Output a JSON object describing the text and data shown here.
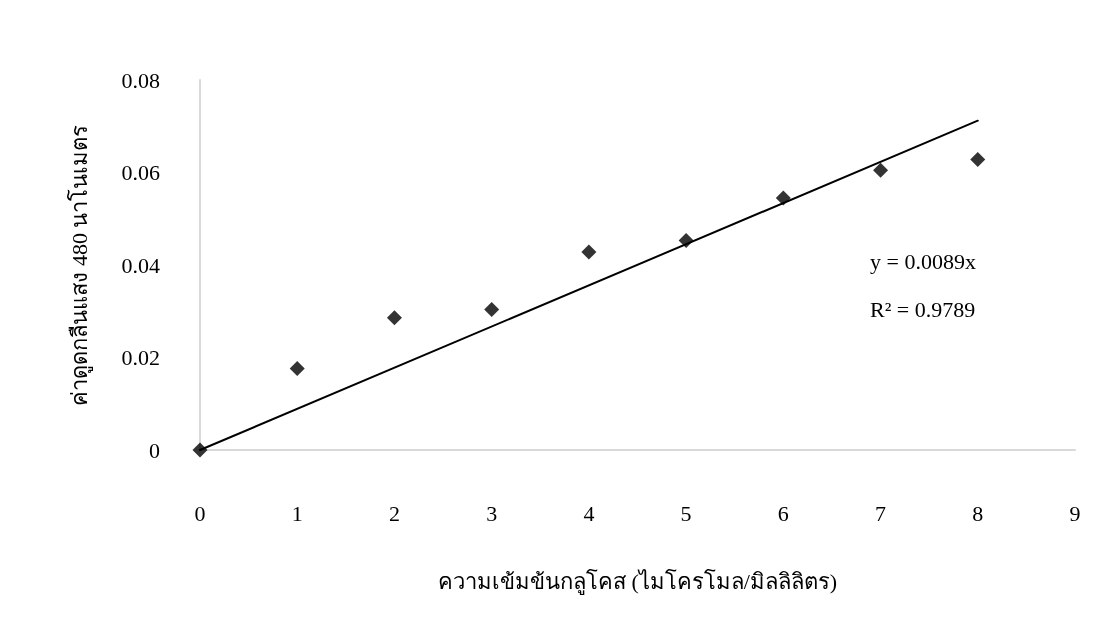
{
  "chart_data": {
    "type": "scatter",
    "xlabel": "ความเข้มข้นกลูโคส (ไมโครโมล/มิลลิลิตร)",
    "ylabel": "ค่าดูดกลืนแสง 480 นาโนเมตร",
    "x": [
      0,
      1,
      2,
      3,
      4,
      5,
      6,
      7,
      8
    ],
    "series": [
      {
        "color": "#000000",
        "marker": "diamond",
        "values": [
          0,
          0.0176,
          0.0286,
          0.0304,
          0.0428,
          0.0453,
          0.0545,
          0.0605,
          0.0628
        ]
      },
      {
        "type": "line",
        "color": "#000000",
        "line_style": "solid",
        "marker": "none",
        "x": [
          0,
          8
        ],
        "values": [
          0,
          0.0712
        ]
      }
    ],
    "xlim": [
      0,
      9
    ],
    "xticks": [
      0,
      1,
      2,
      3,
      4,
      5,
      6,
      7,
      8,
      9
    ],
    "ylim": [
      0,
      0.08
    ],
    "yticks": [
      0,
      0.02,
      0.04,
      0.06,
      0.08
    ],
    "grid": false,
    "annotations": [
      "y = 0.0089x",
      "R² = 0.9789"
    ]
  }
}
